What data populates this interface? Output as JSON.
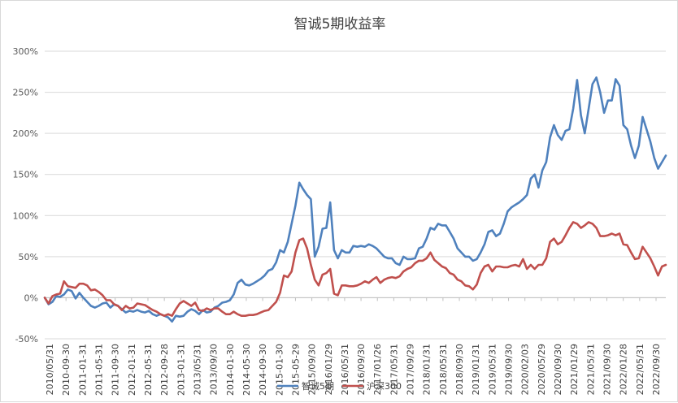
{
  "chart_data": {
    "type": "line",
    "title": "智诚5期收益率",
    "xlabel": "",
    "ylabel": "",
    "ylim": [
      -50,
      300
    ],
    "yticks": [
      -50,
      0,
      50,
      100,
      150,
      200,
      250,
      300
    ],
    "ytick_labels": [
      "-50%",
      "0%",
      "50%",
      "100%",
      "150%",
      "200%",
      "250%",
      "300%"
    ],
    "xtick_labels": [
      "2010/05/31",
      "2010-09-30",
      "2011-01-31",
      "2011-05-31",
      "2011-09-30",
      "2012-01-31",
      "2012-05-31",
      "2012-09-28",
      "2013-01-31",
      "2013/05/31",
      "2013/09/30",
      "2014-01-30",
      "2014-05-30",
      "2014-09-30",
      "2015-01-30",
      "2015-05-29",
      "2015/09/30",
      "2016/01/29",
      "2016/05/31",
      "2016/09/30",
      "2017/01/26",
      "2017/05/31",
      "2017/09/29",
      "2018/01/31",
      "2018/05/31",
      "2018/09/30",
      "2019/01/31",
      "2019/05/31",
      "2019/09/30",
      "2020/02/03",
      "2020/05/29",
      "2020/09/30",
      "2021/01/29",
      "2021/05/31",
      "2021/09/30",
      "2022/01/28",
      "2022/05/31",
      "2022/09/30"
    ],
    "grid": true,
    "legend_position": "bottom",
    "series": [
      {
        "name": "智诚5期",
        "color": "#4f81bd",
        "values": [
          0,
          -8,
          -5,
          2,
          1,
          4,
          10,
          8,
          -1,
          6,
          0,
          -5,
          -10,
          -12,
          -10,
          -7,
          -6,
          -12,
          -8,
          -10,
          -14,
          -18,
          -16,
          -17,
          -15,
          -17,
          -18,
          -16,
          -20,
          -22,
          -20,
          -22,
          -24,
          -29,
          -22,
          -23,
          -22,
          -17,
          -14,
          -16,
          -20,
          -15,
          -18,
          -17,
          -12,
          -10,
          -6,
          -5,
          -3,
          4,
          18,
          22,
          16,
          15,
          17,
          20,
          23,
          27,
          33,
          35,
          43,
          58,
          55,
          68,
          90,
          112,
          140,
          132,
          125,
          120,
          50,
          62,
          84,
          85,
          116,
          58,
          48,
          58,
          55,
          55,
          63,
          62,
          63,
          62,
          65,
          63,
          60,
          55,
          50,
          48,
          48,
          42,
          40,
          50,
          47,
          47,
          48,
          60,
          62,
          72,
          85,
          83,
          90,
          88,
          88,
          80,
          72,
          60,
          55,
          50,
          50,
          45,
          47,
          55,
          65,
          80,
          82,
          75,
          78,
          90,
          105,
          110,
          113,
          116,
          120,
          125,
          145,
          150,
          134,
          155,
          165,
          195,
          210,
          198,
          192,
          203,
          205,
          230,
          265,
          222,
          200,
          230,
          260,
          268,
          250,
          225,
          240,
          240,
          266,
          258,
          210,
          205,
          185,
          170,
          185,
          220,
          205,
          190,
          170,
          157,
          165,
          173
        ]
      },
      {
        "name": "沪深300",
        "color": "#c0504d",
        "values": [
          0,
          -7,
          2,
          4,
          5,
          20,
          14,
          13,
          12,
          17,
          17,
          15,
          9,
          10,
          7,
          3,
          -3,
          -3,
          -8,
          -10,
          -15,
          -10,
          -13,
          -12,
          -7,
          -8,
          -9,
          -12,
          -15,
          -17,
          -20,
          -22,
          -20,
          -22,
          -14,
          -7,
          -4,
          -7,
          -10,
          -6,
          -15,
          -16,
          -13,
          -15,
          -13,
          -13,
          -17,
          -20,
          -20,
          -17,
          -20,
          -22,
          -22,
          -21,
          -21,
          -20,
          -18,
          -16,
          -15,
          -10,
          -5,
          6,
          27,
          25,
          32,
          55,
          70,
          72,
          60,
          40,
          22,
          15,
          28,
          30,
          35,
          5,
          3,
          15,
          15,
          14,
          14,
          15,
          17,
          20,
          18,
          22,
          25,
          18,
          22,
          24,
          25,
          24,
          26,
          32,
          35,
          37,
          42,
          45,
          45,
          48,
          55,
          46,
          42,
          38,
          36,
          30,
          28,
          22,
          20,
          15,
          14,
          10,
          16,
          30,
          38,
          40,
          32,
          38,
          38,
          37,
          37,
          39,
          40,
          38,
          47,
          35,
          40,
          35,
          40,
          40,
          48,
          68,
          72,
          65,
          68,
          76,
          85,
          92,
          90,
          85,
          88,
          92,
          90,
          85,
          75,
          75,
          76,
          78,
          76,
          78,
          65,
          64,
          55,
          47,
          48,
          62,
          55,
          48,
          38,
          27,
          38,
          40
        ]
      }
    ]
  }
}
